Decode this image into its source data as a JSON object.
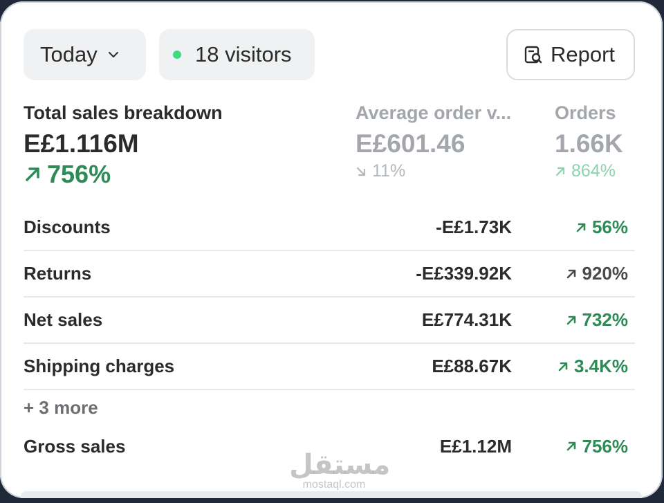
{
  "topbar": {
    "date_filter_label": "Today",
    "visitors_label": "18 visitors",
    "report_label": "Report"
  },
  "metrics": [
    {
      "label": "Total sales breakdown",
      "value": "E£1.116M",
      "change": "756%",
      "direction": "up"
    },
    {
      "label": "Average order v...",
      "value": "E£601.46",
      "change": "11%",
      "direction": "down"
    },
    {
      "label": "Orders",
      "value": "1.66K",
      "change": "864%",
      "direction": "up"
    }
  ],
  "breakdown": [
    {
      "name": "Discounts",
      "amount": "-E£1.73K",
      "change": "56%",
      "color": "green"
    },
    {
      "name": "Returns",
      "amount": "-E£339.92K",
      "change": "920%",
      "color": "gray"
    },
    {
      "name": "Net sales",
      "amount": "E£774.31K",
      "change": "732%",
      "color": "green"
    },
    {
      "name": "Shipping charges",
      "amount": "E£88.67K",
      "change": "3.4K%",
      "color": "green"
    }
  ],
  "more_label": "+ 3 more",
  "gross": {
    "name": "Gross sales",
    "amount": "E£1.12M",
    "change": "756%"
  },
  "watermark": {
    "arabic": "مستقل",
    "latin": "mostaql.com"
  },
  "colors": {
    "positive": "#2e8b57",
    "visitor_dot": "#3ddc84",
    "muted": "#a3a7ab"
  }
}
